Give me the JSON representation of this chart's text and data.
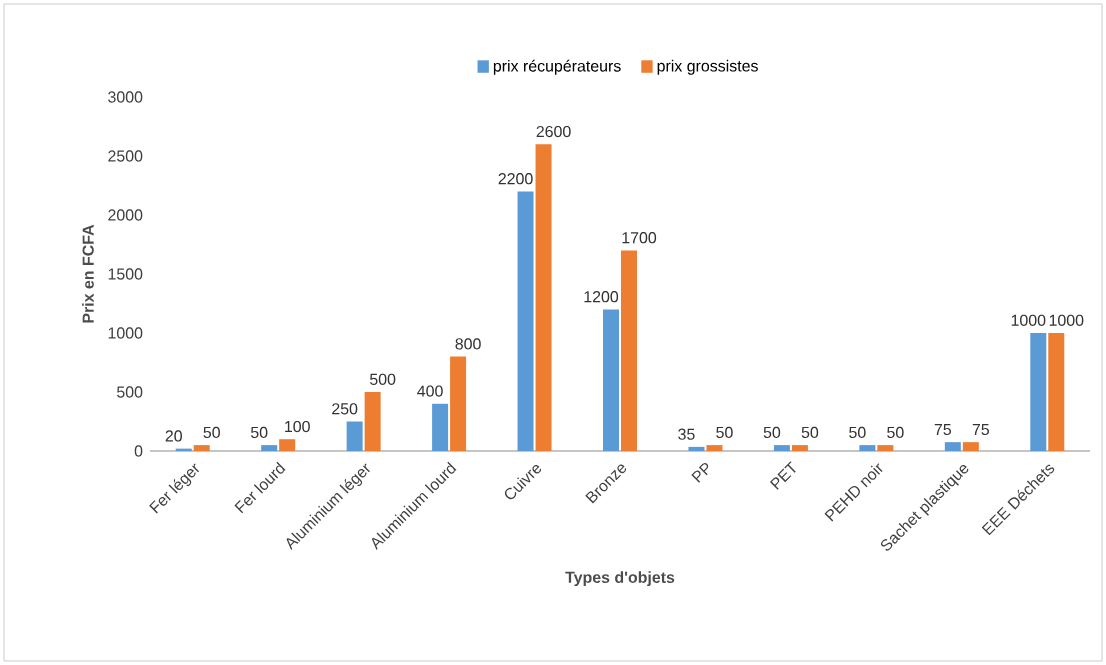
{
  "chart_data": {
    "type": "bar",
    "xlabel": "Types d'objets",
    "ylabel": "Prix en FCFA",
    "categories": [
      "Fer léger",
      "Fer lourd",
      "Aluminium léger",
      "Aluminium lourd",
      "Cuivre",
      "Bronze",
      "PP",
      "PET",
      "PEHD noir",
      "Sachet plastique",
      "EEE Déchets"
    ],
    "series": [
      {
        "name": "prix récupérateurs",
        "color": "#5b9bd5",
        "values": [
          20,
          50,
          250,
          400,
          2200,
          1200,
          35,
          50,
          50,
          75,
          1000
        ]
      },
      {
        "name": "prix grossistes",
        "color": "#ed7d31",
        "values": [
          50,
          100,
          500,
          800,
          2600,
          1700,
          50,
          50,
          50,
          75,
          1000
        ]
      }
    ],
    "ylim": [
      0,
      3000
    ],
    "yticks": [
      0,
      500,
      1000,
      1500,
      2000,
      2500,
      3000
    ],
    "grid": false,
    "legend": "top",
    "data_labels": true
  }
}
